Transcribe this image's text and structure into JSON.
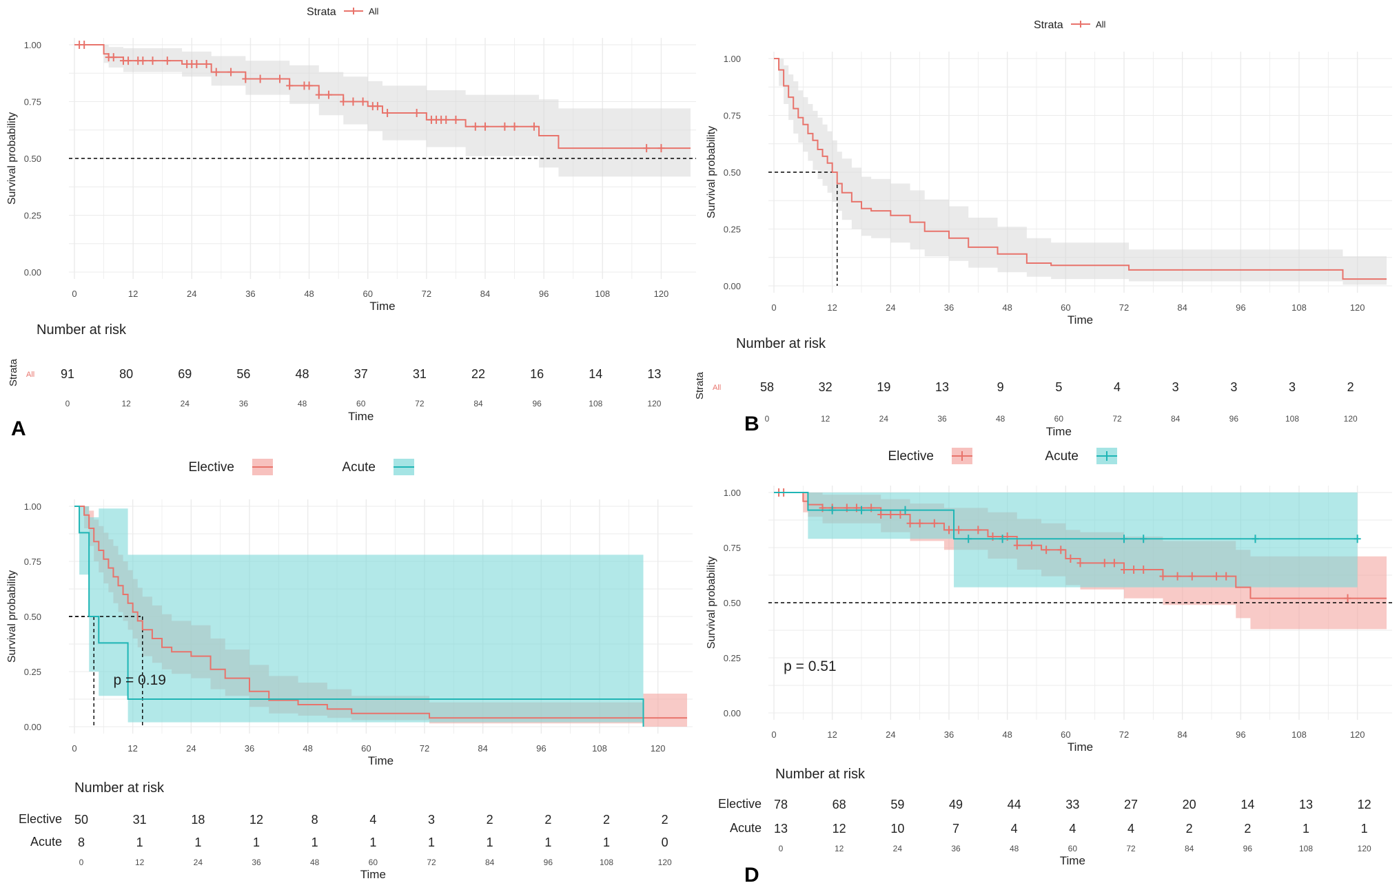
{
  "colors": {
    "red": "#E8736B",
    "teal": "#1FB5B5",
    "band_gray": "#D9D9D9",
    "band_red": "#F4A6A2",
    "band_teal": "#7FD9D9",
    "grid": "#EBEBEB",
    "text": "#222222",
    "axis_text": "#4D4D4D"
  },
  "shared": {
    "xlabel": "Time",
    "ylabel": "Survival probability",
    "risk_title": "Number at risk",
    "risk_xlabel": "Time",
    "strata_label": "Strata",
    "x_ticks": [
      "0",
      "12",
      "24",
      "36",
      "48",
      "60",
      "72",
      "84",
      "96",
      "108",
      "120"
    ],
    "y_ticks": [
      "0.00",
      "0.25",
      "0.50",
      "0.75",
      "1.00"
    ]
  },
  "chart_data": [
    {
      "panel": "A",
      "type": "line",
      "legend_title": "Strata",
      "legend_items": [
        "All"
      ],
      "xlim": [
        0,
        126
      ],
      "ylim": [
        0,
        1
      ],
      "series": [
        {
          "name": "All",
          "color": "red",
          "times": [
            0,
            6,
            7,
            10,
            22,
            28,
            35,
            44,
            50,
            55,
            60,
            63,
            72,
            80,
            95,
            99,
            126
          ],
          "surv": [
            1.0,
            0.96,
            0.945,
            0.93,
            0.915,
            0.88,
            0.85,
            0.82,
            0.78,
            0.75,
            0.73,
            0.7,
            0.67,
            0.64,
            0.6,
            0.545,
            0.545
          ],
          "lower": [
            1.0,
            0.92,
            0.9,
            0.88,
            0.86,
            0.82,
            0.78,
            0.74,
            0.69,
            0.65,
            0.62,
            0.58,
            0.55,
            0.51,
            0.46,
            0.42,
            0.42
          ],
          "upper": [
            1.0,
            1.0,
            0.99,
            0.985,
            0.97,
            0.95,
            0.93,
            0.91,
            0.88,
            0.86,
            0.84,
            0.82,
            0.8,
            0.78,
            0.76,
            0.72,
            0.72
          ],
          "censor": [
            1,
            2,
            7,
            8,
            10,
            11,
            13,
            14,
            16,
            19,
            23,
            24,
            25,
            27,
            29,
            32,
            35,
            38,
            42,
            44,
            47,
            48,
            50,
            52,
            55,
            57,
            59,
            61,
            62,
            64,
            70,
            73,
            74,
            75,
            76,
            78,
            82,
            84,
            88,
            90,
            94,
            117,
            120
          ]
        }
      ],
      "median_lines": [],
      "risk_table": {
        "rows": [
          {
            "label": "All",
            "label_style": "strata",
            "values": [
              "91",
              "80",
              "69",
              "56",
              "48",
              "37",
              "31",
              "22",
              "16",
              "14",
              "13"
            ]
          }
        ]
      },
      "pvalue": ""
    },
    {
      "panel": "B",
      "type": "line",
      "legend_title": "Strata",
      "legend_items": [
        "All"
      ],
      "xlim": [
        0,
        126
      ],
      "ylim": [
        0,
        1
      ],
      "series": [
        {
          "name": "All",
          "color": "red",
          "times": [
            0,
            1,
            2,
            3,
            4,
            5,
            6,
            7,
            8,
            9,
            10,
            11,
            12,
            13,
            14,
            16,
            18,
            20,
            24,
            28,
            31,
            36,
            40,
            46,
            52,
            57,
            73,
            117,
            126
          ],
          "surv": [
            1.0,
            0.95,
            0.88,
            0.83,
            0.78,
            0.74,
            0.71,
            0.67,
            0.64,
            0.6,
            0.57,
            0.54,
            0.5,
            0.45,
            0.41,
            0.37,
            0.34,
            0.33,
            0.31,
            0.28,
            0.24,
            0.21,
            0.17,
            0.14,
            0.1,
            0.09,
            0.07,
            0.03,
            0.03
          ],
          "lower": [
            1.0,
            0.88,
            0.8,
            0.73,
            0.67,
            0.63,
            0.59,
            0.55,
            0.51,
            0.47,
            0.44,
            0.41,
            0.37,
            0.33,
            0.29,
            0.25,
            0.22,
            0.21,
            0.19,
            0.16,
            0.13,
            0.11,
            0.08,
            0.06,
            0.04,
            0.03,
            0.02,
            0.005,
            0.005
          ],
          "upper": [
            1.0,
            1.0,
            0.97,
            0.93,
            0.9,
            0.86,
            0.83,
            0.8,
            0.77,
            0.74,
            0.71,
            0.68,
            0.64,
            0.59,
            0.56,
            0.52,
            0.48,
            0.47,
            0.45,
            0.42,
            0.38,
            0.35,
            0.3,
            0.26,
            0.21,
            0.19,
            0.16,
            0.13,
            0.13
          ],
          "censor": []
        }
      ],
      "median_lines": [
        {
          "x": 13,
          "y": 0.5
        }
      ],
      "risk_table": {
        "rows": [
          {
            "label": "All",
            "label_style": "strata",
            "values": [
              "58",
              "32",
              "19",
              "13",
              "9",
              "5",
              "4",
              "3",
              "3",
              "3",
              "2"
            ]
          }
        ]
      },
      "pvalue": ""
    },
    {
      "panel": "C",
      "type": "line",
      "legend_title": "",
      "legend_items": [
        "Elective",
        "Acute"
      ],
      "xlim": [
        0,
        126
      ],
      "ylim": [
        0,
        1
      ],
      "series": [
        {
          "name": "Elective",
          "color": "red",
          "band": "band_red",
          "times": [
            0,
            2,
            3,
            4,
            5,
            6,
            7,
            8,
            9,
            10,
            11,
            12,
            13,
            14,
            16,
            18,
            20,
            24,
            28,
            31,
            36,
            40,
            46,
            52,
            57,
            73,
            117,
            126
          ],
          "surv": [
            1.0,
            0.96,
            0.9,
            0.84,
            0.8,
            0.76,
            0.72,
            0.68,
            0.64,
            0.6,
            0.56,
            0.52,
            0.48,
            0.44,
            0.4,
            0.36,
            0.34,
            0.32,
            0.26,
            0.22,
            0.16,
            0.12,
            0.1,
            0.08,
            0.06,
            0.04,
            0.04,
            0.04
          ],
          "lower": [
            1.0,
            0.9,
            0.82,
            0.75,
            0.7,
            0.65,
            0.61,
            0.56,
            0.52,
            0.48,
            0.44,
            0.4,
            0.36,
            0.32,
            0.29,
            0.26,
            0.24,
            0.22,
            0.17,
            0.14,
            0.09,
            0.06,
            0.05,
            0.04,
            0.03,
            0.015,
            0.0,
            0.0
          ],
          "upper": [
            1.0,
            1.0,
            0.98,
            0.94,
            0.91,
            0.88,
            0.85,
            0.82,
            0.78,
            0.75,
            0.71,
            0.67,
            0.63,
            0.59,
            0.55,
            0.51,
            0.48,
            0.46,
            0.4,
            0.35,
            0.28,
            0.23,
            0.2,
            0.17,
            0.14,
            0.11,
            0.15,
            0.15
          ],
          "censor": []
        },
        {
          "name": "Acute",
          "color": "teal",
          "band": "band_teal",
          "times": [
            0,
            1,
            3,
            5,
            11,
            117
          ],
          "surv": [
            1.0,
            0.88,
            0.5,
            0.38,
            0.125,
            0.0
          ],
          "lower": [
            1.0,
            0.69,
            0.25,
            0.14,
            0.02,
            0.0
          ],
          "upper": [
            1.0,
            1.0,
            0.95,
            0.99,
            0.78,
            0.0
          ],
          "censor": []
        }
      ],
      "median_lines": [
        {
          "x": 4,
          "y": 0.5
        },
        {
          "x": 14,
          "y": 0.5
        }
      ],
      "risk_table": {
        "rows": [
          {
            "label": "Elective",
            "label_style": "plain",
            "values": [
              "50",
              "31",
              "18",
              "12",
              "8",
              "4",
              "3",
              "2",
              "2",
              "2",
              "2"
            ]
          },
          {
            "label": "Acute",
            "label_style": "plain",
            "values": [
              "8",
              "1",
              "1",
              "1",
              "1",
              "1",
              "1",
              "1",
              "1",
              "1",
              "0"
            ]
          }
        ]
      },
      "pvalue": "p = 0.19"
    },
    {
      "panel": "D",
      "type": "line",
      "legend_title": "",
      "legend_items": [
        "Elective",
        "Acute"
      ],
      "xlim": [
        0,
        126
      ],
      "ylim": [
        0,
        1
      ],
      "series": [
        {
          "name": "Elective",
          "color": "red",
          "band": "band_red",
          "times": [
            0,
            6,
            7,
            10,
            22,
            28,
            35,
            44,
            50,
            55,
            60,
            63,
            72,
            80,
            95,
            98,
            126
          ],
          "surv": [
            1.0,
            0.96,
            0.945,
            0.93,
            0.9,
            0.86,
            0.83,
            0.8,
            0.76,
            0.74,
            0.7,
            0.68,
            0.65,
            0.62,
            0.57,
            0.52,
            0.52
          ],
          "lower": [
            1.0,
            0.91,
            0.89,
            0.86,
            0.82,
            0.78,
            0.74,
            0.7,
            0.65,
            0.62,
            0.58,
            0.56,
            0.52,
            0.49,
            0.43,
            0.38,
            0.38
          ],
          "upper": [
            1.0,
            1.0,
            1.0,
            0.99,
            0.97,
            0.95,
            0.93,
            0.91,
            0.88,
            0.86,
            0.83,
            0.82,
            0.8,
            0.78,
            0.74,
            0.71,
            0.71
          ],
          "censor": [
            1,
            2,
            10,
            12,
            15,
            17,
            20,
            22,
            24,
            26,
            28,
            30,
            33,
            36,
            38,
            42,
            45,
            48,
            50,
            53,
            56,
            59,
            61,
            63,
            68,
            70,
            72,
            74,
            76,
            80,
            83,
            86,
            91,
            93,
            118
          ]
        },
        {
          "name": "Acute",
          "color": "teal",
          "band": "band_teal",
          "times": [
            0,
            7,
            37,
            120
          ],
          "surv": [
            1.0,
            0.92,
            0.79,
            0.79
          ],
          "lower": [
            1.0,
            0.79,
            0.57,
            0.57
          ],
          "upper": [
            1.0,
            1.0,
            1.0,
            1.0
          ],
          "censor": [
            12,
            18,
            27,
            40,
            47,
            72,
            76,
            99,
            120
          ]
        }
      ],
      "median_lines": [],
      "risk_table": {
        "rows": [
          {
            "label": "Elective",
            "label_style": "plain",
            "values": [
              "78",
              "68",
              "59",
              "49",
              "44",
              "33",
              "27",
              "20",
              "14",
              "13",
              "12"
            ]
          },
          {
            "label": "Acute",
            "label_style": "plain",
            "values": [
              "13",
              "12",
              "10",
              "7",
              "4",
              "4",
              "4",
              "2",
              "2",
              "1",
              "1"
            ]
          }
        ]
      },
      "pvalue": "p = 0.51"
    }
  ]
}
